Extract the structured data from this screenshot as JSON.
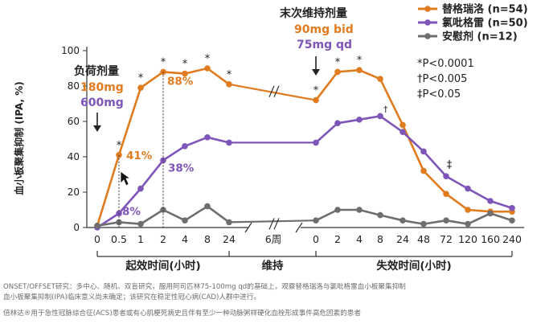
{
  "chart_data": {
    "type": "line",
    "ylabel": "血小板聚集抑制 (IPA, %)",
    "ylim": [
      0,
      100
    ],
    "yticks": [
      "0",
      "20",
      "40",
      "60",
      "80",
      "100"
    ],
    "xtick_labels": [
      "0",
      "0.5",
      "1",
      "2",
      "4",
      "8",
      "24",
      "6周",
      "0",
      "2",
      "4",
      "8",
      "24",
      "48",
      "72",
      "120",
      "160",
      "240"
    ],
    "phases": [
      "起效时间(小时)",
      "维持",
      "失效时间(小时)"
    ],
    "series": [
      {
        "name": "替格瑞洛 (n=54)",
        "color": "#e07b1f",
        "values": [
          1,
          41,
          79,
          88,
          87,
          90,
          81,
          null,
          72,
          88,
          89,
          84,
          58,
          32,
          19,
          10,
          9,
          9
        ]
      },
      {
        "name": "氯吡格雷 (n=50)",
        "color": "#7e55b8",
        "values": [
          0,
          8,
          22,
          38,
          46,
          51,
          48,
          null,
          48,
          59,
          61,
          63,
          54,
          43,
          29,
          22,
          15,
          11
        ]
      },
      {
        "name": "安慰剂 (n=12)",
        "color": "#6e6e6e",
        "values": [
          1,
          3,
          2,
          10,
          4,
          12,
          3,
          null,
          4,
          10,
          10,
          7,
          4,
          2,
          4,
          2,
          8,
          4
        ]
      }
    ],
    "annotations": {
      "loading_dose_title": "负荷剂量",
      "loading_dose_ticagrelor": "180mg",
      "loading_dose_clopidogrel": "600mg",
      "maintenance_title": "末次维持剂量",
      "maintenance_ticagrelor": "90mg bid",
      "maintenance_clopidogrel": "75mg qd",
      "value_labels": [
        {
          "series": 0,
          "point": 1,
          "text": "41%"
        },
        {
          "series": 0,
          "point": 3,
          "text": "88%"
        },
        {
          "series": 1,
          "point": 3,
          "text": "38%"
        },
        {
          "series": 1,
          "point": 1,
          "text": "8%"
        }
      ],
      "stars": [
        {
          "point": 1,
          "symbol": "*"
        },
        {
          "point": 2,
          "symbol": "*"
        },
        {
          "point": 3,
          "symbol": "*"
        },
        {
          "point": 4,
          "symbol": "*"
        },
        {
          "point": 5,
          "symbol": "*"
        },
        {
          "point": 6,
          "symbol": "*"
        },
        {
          "point": 8,
          "symbol": "*"
        },
        {
          "point": 9,
          "symbol": "*"
        },
        {
          "point": 10,
          "symbol": "*"
        },
        {
          "point": 14,
          "symbol": "‡"
        }
      ],
      "significance": [
        "*P<0.0001",
        "†P<0.005",
        "‡P<0.05"
      ]
    }
  },
  "footnotes": [
    "ONSET/OFFSET研究：多中心、随机、双盲研究，服用阿司匹林75-100mg qd的基础上，观察替格瑞洛与氯吡格雷血小板聚集抑制",
    "血小板聚集抑制(IPA)临床意义尚未确定；该研究在稳定性冠心病(CAD)人群中进行。",
    "倍林达®用于急性冠脉综合征(ACS)患者或有心肌梗死病史且伴有至少一种动脉粥样硬化血栓形成事件高危因素的患者"
  ]
}
